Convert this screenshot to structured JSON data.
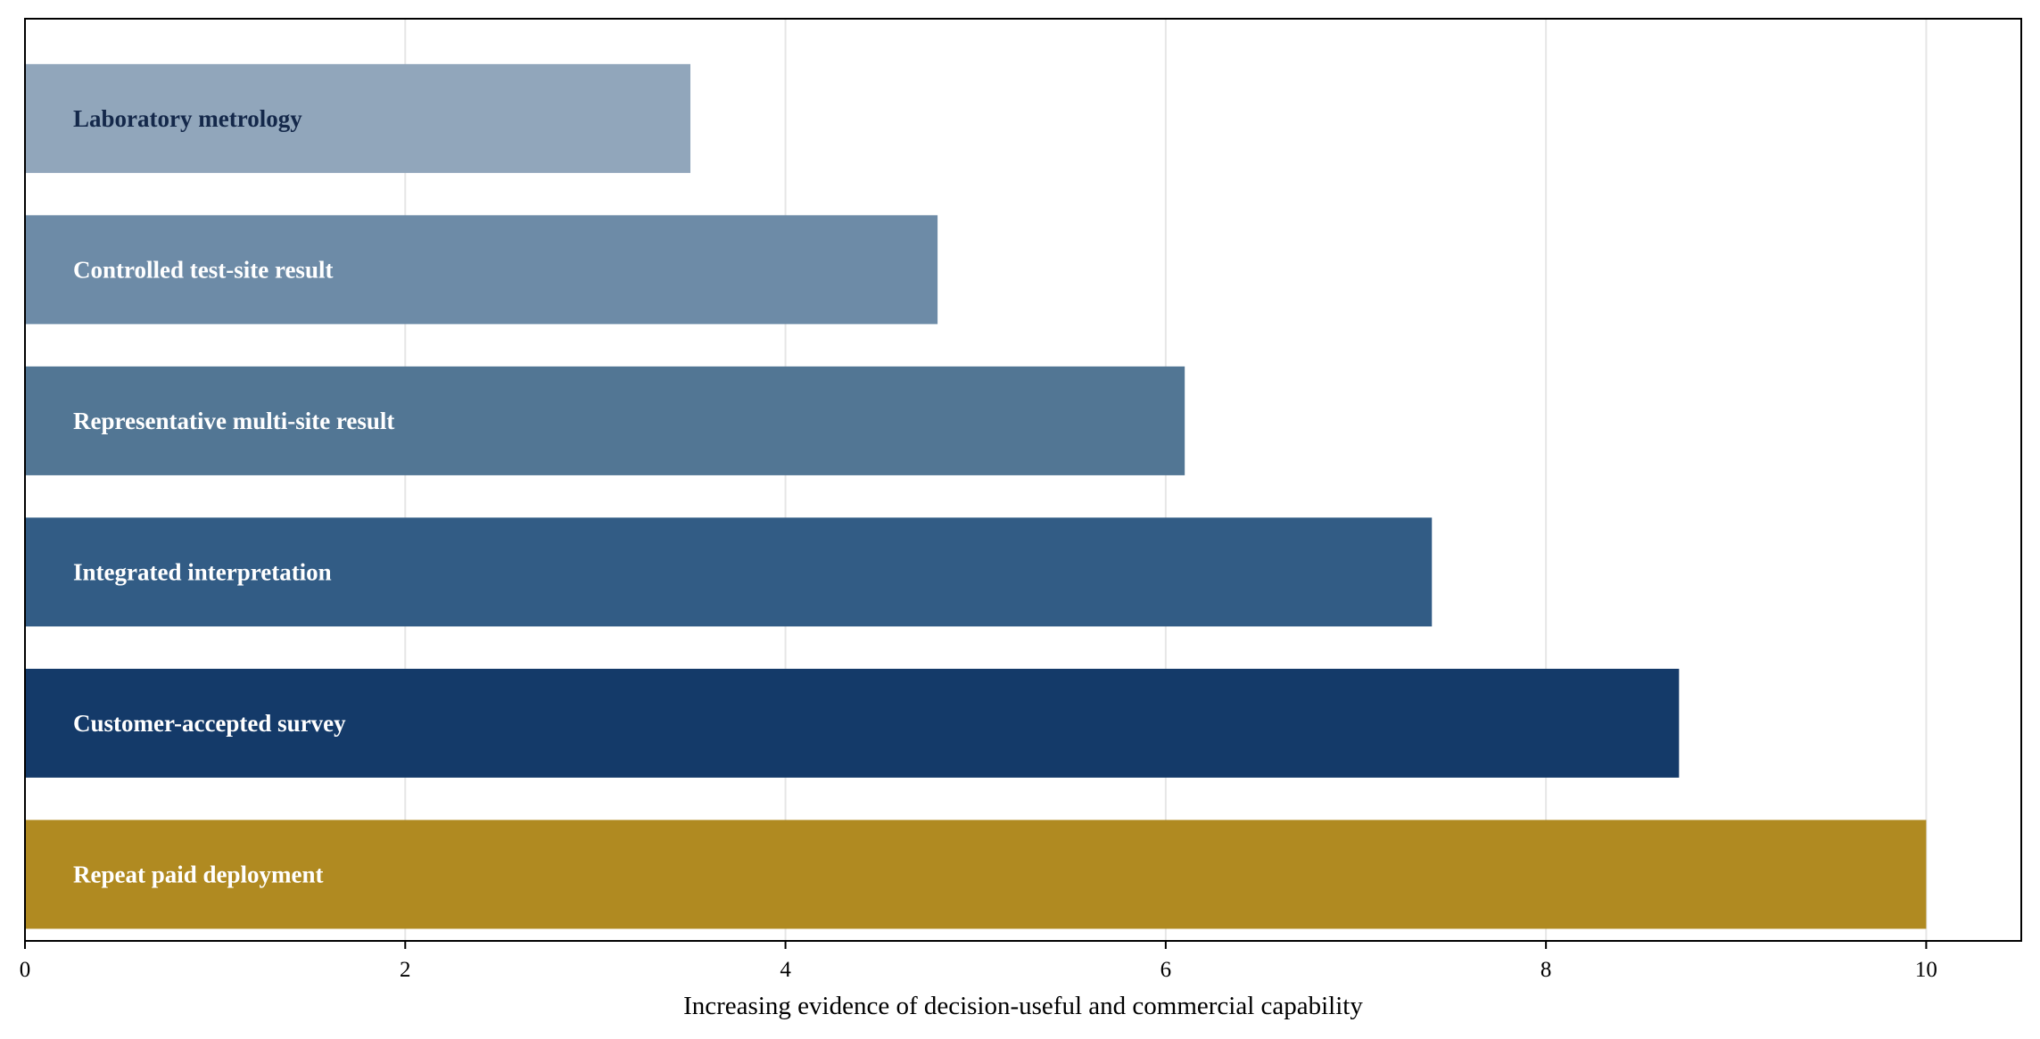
{
  "chart_data": {
    "type": "bar",
    "orientation": "horizontal",
    "title": "",
    "xlabel": "Increasing evidence of decision-useful and commercial capability",
    "ylabel": "",
    "xlim": [
      0,
      10.5
    ],
    "xticks": [
      0,
      2,
      4,
      6,
      8,
      10
    ],
    "grid": "x",
    "categories": [
      "Laboratory metrology",
      "Controlled test-site result",
      "Representative multi-site result",
      "Integrated interpretation",
      "Customer-accepted survey",
      "Repeat paid deployment"
    ],
    "values": [
      3.5,
      4.8,
      6.1,
      7.4,
      8.7,
      10.0
    ],
    "colors": [
      "#91a6bb",
      "#6d8ba7",
      "#527694",
      "#325c85",
      "#143a69",
      "#b08a21"
    ],
    "label_colors": [
      "#14284a",
      "#ffffff",
      "#ffffff",
      "#ffffff",
      "#ffffff",
      "#ffffff"
    ]
  }
}
